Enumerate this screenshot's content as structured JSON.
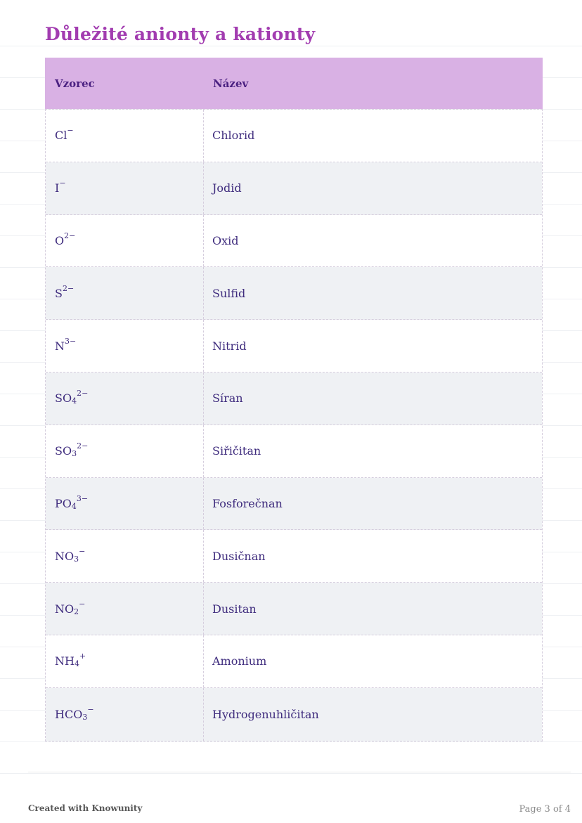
{
  "page": {
    "title": "Důležité anionty a kationty",
    "footer": {
      "credit": "Created with Knowunity",
      "page_indicator": "Page 3 of 4"
    },
    "colors": {
      "title_color": "#a23cb0",
      "header_bg": "#d9b1e4",
      "header_text": "#4b2181",
      "body_text": "#3e2b7d",
      "row_alt_bg": "#eff1f4",
      "dashed_border": "#d5cddd"
    }
  },
  "table": {
    "columns": [
      "Vzorec",
      "Název"
    ],
    "rows": [
      {
        "formula": {
          "base": "Cl",
          "sub": "",
          "sup": "−"
        },
        "name": "Chlorid"
      },
      {
        "formula": {
          "base": "I",
          "sub": "",
          "sup": "−"
        },
        "name": "Jodid"
      },
      {
        "formula": {
          "base": "O",
          "sub": "",
          "sup": "2−"
        },
        "name": "Oxid"
      },
      {
        "formula": {
          "base": "S",
          "sub": "",
          "sup": "2−"
        },
        "name": "Sulfid"
      },
      {
        "formula": {
          "base": "N",
          "sub": "",
          "sup": "3−"
        },
        "name": "Nitrid"
      },
      {
        "formula": {
          "base": "SO",
          "sub": "4",
          "sup": "2−"
        },
        "name": "Síran"
      },
      {
        "formula": {
          "base": "SO",
          "sub": "3",
          "sup": "2−"
        },
        "name": "Siřičitan"
      },
      {
        "formula": {
          "base": "PO",
          "sub": "4",
          "sup": "3−"
        },
        "name": "Fosforečnan"
      },
      {
        "formula": {
          "base": "NO",
          "sub": "3",
          "sup": "−"
        },
        "name": "Dusičnan"
      },
      {
        "formula": {
          "base": "NO",
          "sub": "2",
          "sup": "−"
        },
        "name": "Dusitan"
      },
      {
        "formula": {
          "base": "NH",
          "sub": "4",
          "sup": "+"
        },
        "name": "Amonium"
      },
      {
        "formula": {
          "base": "HCO",
          "sub": "3",
          "sup": "−"
        },
        "name": "Hydrogenuhličitan"
      }
    ]
  }
}
